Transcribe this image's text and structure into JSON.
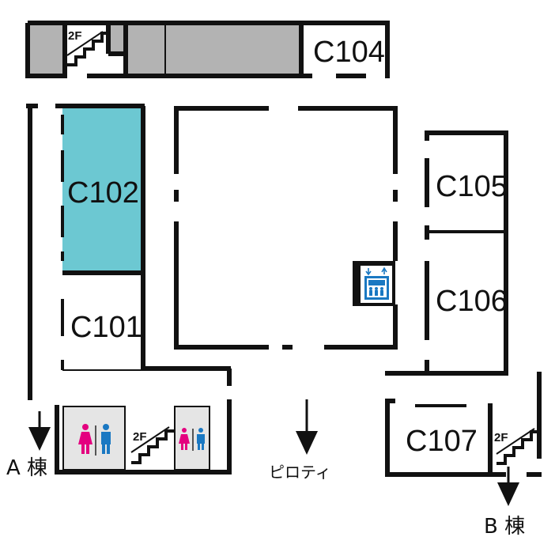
{
  "rooms": {
    "c101": "C101",
    "c102": "C102",
    "c104": "C104",
    "c105": "C105",
    "c106": "C106",
    "c107": "C107"
  },
  "stairs": {
    "top_label": "2F",
    "bottom_label": "2F",
    "right_label": "2F"
  },
  "exits": {
    "a_building": "A 棟",
    "b_building": "B 棟",
    "piloti": "ピロティ"
  },
  "colors": {
    "wall": "#111111",
    "highlight_room": "#6cc8d2",
    "gray_room": "#b3b3b3",
    "restroom_bg": "#e5e5e5",
    "female": "#e4007f",
    "male": "#1a78c2",
    "elevator": "#1a78c2"
  },
  "icons": {
    "restroom": "restroom-icon",
    "elevator": "elevator-icon",
    "stairs": "stairs-icon",
    "arrow": "down-arrow-icon"
  }
}
